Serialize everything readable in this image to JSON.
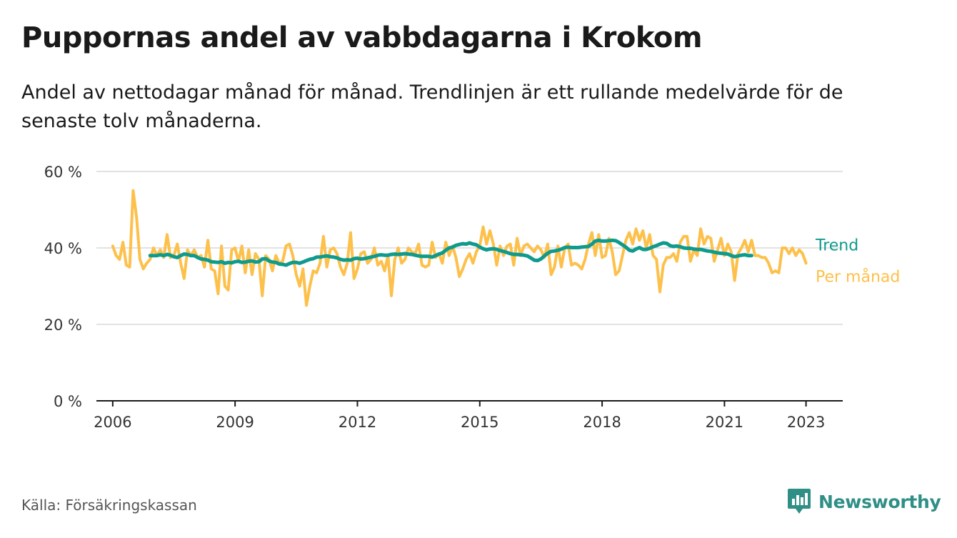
{
  "header": {
    "title": "Puppornas andel av vabbdagarna i Krokom",
    "subtitle": "Andel av nettodagar månad för månad. Trendlinjen är ett rullande medelvärde för de senaste tolv månaderna."
  },
  "footer": {
    "source": "Källa: Försäkringskassan",
    "brand": "Newsworthy"
  },
  "colors": {
    "trend": "#0e9a8c",
    "monthly": "#fdc04a",
    "grid": "#d9d9d9",
    "axis": "#1a1a1a",
    "brand": "#2f8f86"
  },
  "chart_data": {
    "type": "line",
    "title": "Puppornas andel av vabbdagarna i Krokom",
    "xlabel": "",
    "ylabel": "",
    "x_unit": "year",
    "xlim": [
      2005.6,
      2023.9
    ],
    "ylim": [
      0,
      60
    ],
    "y_ticks": [
      0,
      20,
      40,
      60
    ],
    "y_tick_labels": [
      "0 %",
      "20 %",
      "40 %",
      "60 %"
    ],
    "x_ticks": [
      2006,
      2009,
      2012,
      2015,
      2018,
      2021,
      2023
    ],
    "x_tick_labels": [
      "2006",
      "2009",
      "2012",
      "2015",
      "2018",
      "2021",
      "2023"
    ],
    "grid": true,
    "legend": "right-of-lines",
    "series": [
      {
        "name": "Per månad",
        "start": 2006.0,
        "step": 0.08333,
        "values": [
          40.5,
          38,
          37,
          41.5,
          35.5,
          35,
          55,
          48,
          37,
          34.5,
          36,
          37,
          40,
          38,
          39.5,
          37.5,
          43.5,
          37.5,
          38,
          41,
          36,
          32,
          39.5,
          38,
          39.5,
          37.5,
          38,
          35,
          42,
          34.5,
          34,
          28,
          40.5,
          30,
          29,
          39.5,
          40,
          36.5,
          40.5,
          33.5,
          39.5,
          33,
          38.5,
          37,
          27.5,
          38,
          37,
          34,
          38,
          36,
          36.5,
          40.5,
          41,
          38,
          33,
          30,
          34.5,
          25,
          30,
          34,
          33.5,
          36,
          43,
          35,
          39.5,
          40,
          38.5,
          35,
          33,
          36,
          44,
          32,
          34.5,
          38.5,
          39,
          36,
          37,
          40,
          35.5,
          36.5,
          34,
          38,
          27.5,
          37,
          40,
          36,
          37,
          40,
          39,
          38.5,
          41,
          35.5,
          35,
          35.5,
          41.5,
          37.5,
          38.5,
          36,
          41.5,
          38,
          40.5,
          37.5,
          32.5,
          34.5,
          37,
          38.5,
          36,
          39,
          40.5,
          45.5,
          41,
          44.5,
          41,
          35.5,
          40.5,
          38,
          40.5,
          41,
          35.5,
          42.5,
          38,
          40.5,
          41,
          40,
          39,
          40.5,
          39.5,
          37.5,
          41,
          33,
          35,
          40.5,
          35,
          40,
          41,
          35.5,
          36,
          35.5,
          34.5,
          37,
          41,
          44,
          38,
          43.5,
          37.5,
          38,
          42.5,
          39,
          33,
          34,
          38,
          42,
          44,
          41,
          45,
          42,
          44.5,
          40,
          43.5,
          38,
          37,
          28.5,
          35.5,
          37.5,
          37.5,
          38.5,
          36.5,
          41.5,
          43,
          43,
          36.5,
          39.5,
          38,
          45,
          41,
          43,
          42.5,
          36.5,
          39.5,
          42.5,
          38,
          41,
          39,
          31.5,
          38.5,
          40,
          42,
          39,
          42,
          38,
          38,
          37.5,
          37.5,
          36,
          33.5,
          34,
          33.5,
          40,
          40,
          38.5,
          40,
          38,
          39.5,
          38.5,
          36
        ]
      },
      {
        "name": "Trend",
        "start": 2006.9167,
        "step": 0.08333,
        "values": [
          38,
          38,
          38,
          38.2,
          38,
          38.3,
          38.1,
          37.7,
          37.5,
          38,
          38.4,
          38.3,
          38,
          38,
          37.5,
          37.1,
          37,
          36.8,
          36.4,
          36.3,
          36.2,
          36.4,
          36,
          36.2,
          36.1,
          36.4,
          36.5,
          36.2,
          36.3,
          36.5,
          36.6,
          36.3,
          36.4,
          37.1,
          37.2,
          36.6,
          36.3,
          36.2,
          35.8,
          35.7,
          35.5,
          35.9,
          36.2,
          36.2,
          36,
          36.3,
          36.7,
          37,
          37.2,
          37.6,
          37.6,
          37.8,
          37.9,
          37.7,
          37.6,
          37.4,
          37,
          36.8,
          36.9,
          36.8,
          37.2,
          37.3,
          37.1,
          37.2,
          37.4,
          37.6,
          37.8,
          38.1,
          38.2,
          38.1,
          38.1,
          38.3,
          38.4,
          38.3,
          38.4,
          38.5,
          38.4,
          38.3,
          38.1,
          37.9,
          37.8,
          37.8,
          37.8,
          37.6,
          38,
          38.4,
          38.7,
          39.4,
          40,
          40.2,
          40.7,
          40.9,
          41.1,
          41,
          41.3,
          41,
          40.8,
          40.2,
          39.8,
          39.5,
          39.7,
          39.8,
          39.6,
          39.3,
          39.1,
          38.8,
          38.5,
          38.3,
          38.3,
          38.2,
          38.1,
          37.9,
          37.4,
          36.8,
          36.7,
          37.1,
          37.9,
          38.6,
          39.1,
          39.2,
          39.4,
          39.7,
          40.1,
          40.2,
          40.1,
          40.1,
          40.1,
          40.2,
          40.3,
          40.4,
          41,
          41.8,
          42,
          41.8,
          41.8,
          41.9,
          42,
          41.9,
          41.4,
          40.8,
          40.2,
          39.4,
          39.2,
          39.7,
          40.1,
          39.6,
          39.6,
          39.9,
          40.3,
          40.6,
          41,
          41.3,
          41.2,
          40.6,
          40.4,
          40.5,
          40.3,
          40,
          39.9,
          39.9,
          39.7,
          39.6,
          39.6,
          39.4,
          39.2,
          39.1,
          38.9,
          38.7,
          38.6,
          38.5,
          38.4,
          38,
          37.7,
          37.9,
          38.1,
          38.2,
          38,
          38
        ]
      }
    ]
  }
}
